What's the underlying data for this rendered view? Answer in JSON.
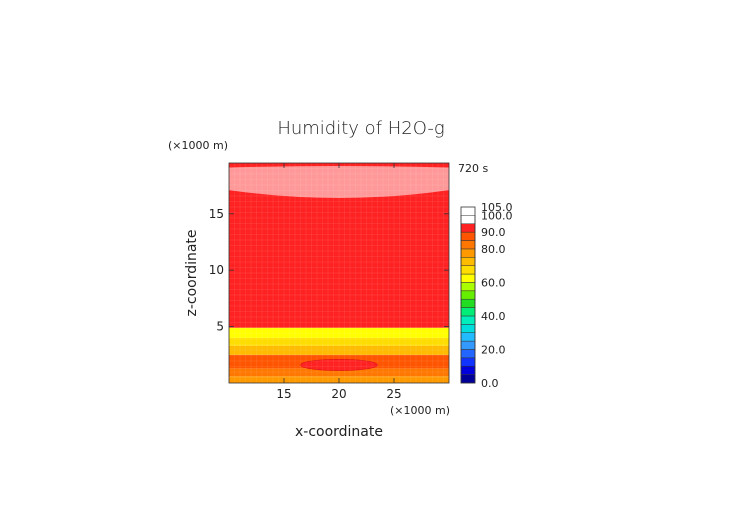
{
  "chart_data": {
    "type": "heatmap",
    "title": "Humidity of H2O-g",
    "time_label": "720 s",
    "xlabel": "x-coordinate",
    "ylabel": "z-coordinate",
    "x_unit": "(×1000 m)",
    "y_unit": "(×1000 m)",
    "xlim": [
      10,
      30
    ],
    "ylim": [
      0,
      19.5
    ],
    "x_ticks": [
      15,
      20,
      25
    ],
    "y_ticks": [
      5,
      10,
      15
    ],
    "x_tick_labels": [
      "15",
      "20",
      "25"
    ],
    "y_tick_labels": [
      "5",
      "10",
      "15"
    ],
    "grid": false,
    "legend_position": "right",
    "colorbar": {
      "colors": [
        "#000099",
        "#0000dd",
        "#1133ff",
        "#2266ff",
        "#3399ff",
        "#22bbff",
        "#00dddd",
        "#00eebb",
        "#00ee77",
        "#22dd22",
        "#66ee00",
        "#aaff00",
        "#ffff00",
        "#ffdd00",
        "#ffbb00",
        "#ff9900",
        "#ff7700",
        "#ff5500",
        "#ff2222",
        "#ffffff"
      ],
      "labels": [
        "0.0",
        "20.0",
        "40.0",
        "60.0",
        "80.0",
        "90.0",
        "100.0",
        "105.0"
      ],
      "label_values": [
        0,
        20,
        40,
        60,
        80,
        90,
        100,
        105
      ],
      "level_values": [
        0,
        5,
        10,
        15,
        20,
        25,
        30,
        35,
        40,
        45,
        50,
        55,
        60,
        65,
        70,
        75,
        80,
        85,
        90,
        95,
        100,
        105
      ]
    },
    "field_bands": [
      {
        "z_bottom": 0.0,
        "z_top": 0.6,
        "value": 80,
        "color": "#ff9900"
      },
      {
        "z_bottom": 0.6,
        "z_top": 1.3,
        "value": 85,
        "color": "#ff7700"
      },
      {
        "z_bottom": 1.3,
        "z_top": 2.5,
        "value": 90,
        "color": "#ff5500"
      },
      {
        "z_bottom": 2.5,
        "z_top": 3.3,
        "value": 75,
        "color": "#ffbb00"
      },
      {
        "z_bottom": 3.3,
        "z_top": 4.0,
        "value": 70,
        "color": "#ffdd00"
      },
      {
        "z_bottom": 4.0,
        "z_top": 4.9,
        "value": 65,
        "color": "#ffff00"
      },
      {
        "z_bottom": 4.9,
        "z_top": 19.5,
        "value": 100,
        "color": "#ff2222"
      }
    ],
    "features": [
      {
        "kind": "ellipse",
        "x_center": 20,
        "z_center": 1.6,
        "x_radius": 3.5,
        "z_radius": 0.5,
        "value": 100,
        "color": "#ff2222"
      },
      {
        "kind": "dome",
        "x_left": 10,
        "x_right": 30,
        "z_edge": 17.1,
        "z_center": 16.4,
        "z_top": 19.1,
        "value": 105,
        "color": "#ff9999"
      }
    ]
  }
}
